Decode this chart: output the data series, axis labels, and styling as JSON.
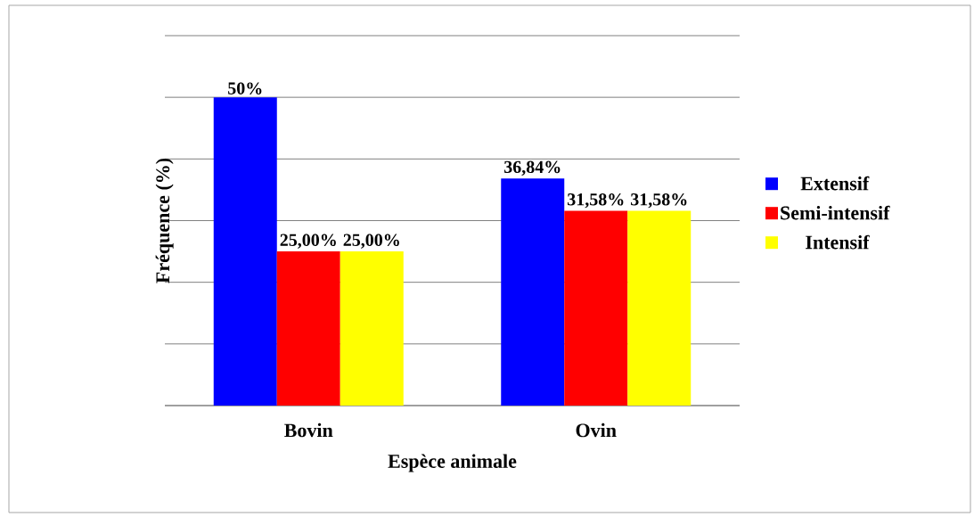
{
  "chart_data": {
    "type": "bar",
    "xlabel": "Espèce animale",
    "ylabel": "Fréquence (%)",
    "categories": [
      "Bovin",
      "Ovin"
    ],
    "series": [
      {
        "name": "Extensif",
        "color": "#0000ff",
        "values": [
          50,
          36.84
        ],
        "value_labels": [
          "50%",
          "36,84%"
        ]
      },
      {
        "name": "Semi-intensif",
        "color": "#ff0000",
        "values": [
          25,
          31.58
        ],
        "value_labels": [
          "25,00%",
          "31,58%"
        ]
      },
      {
        "name": " Intensif",
        "color": "#ffff00",
        "values": [
          25,
          31.58
        ],
        "value_labels": [
          "25,00%",
          "31,58%"
        ]
      }
    ],
    "ylim": [
      0,
      60
    ],
    "yticks": [
      {
        "value": 0,
        "label": null
      },
      {
        "value": 10,
        "label": null
      },
      {
        "value": 20,
        "label": null
      },
      {
        "value": 30,
        "label": null
      },
      {
        "value": 40,
        "label": null
      },
      {
        "value": 50,
        "label": null
      },
      {
        "value": 60,
        "label": null
      }
    ],
    "tick_labels": "x",
    "grid": "y",
    "legend": "right"
  }
}
